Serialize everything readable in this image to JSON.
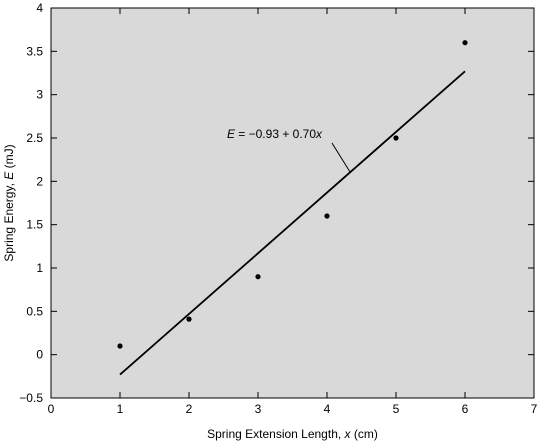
{
  "chart_data": {
    "type": "scatter",
    "xlabel": {
      "prefix": "Spring Extension Length, ",
      "var": "x",
      "suffix": " (cm)"
    },
    "ylabel": {
      "prefix": "Spring Energy, ",
      "var": "E",
      "suffix": " (mJ)"
    },
    "xlim": [
      0,
      7
    ],
    "ylim": [
      -0.5,
      4
    ],
    "x_ticks": [
      0,
      1,
      2,
      3,
      4,
      5,
      6,
      7
    ],
    "x_tick_labels": [
      "0",
      "1",
      "2",
      "3",
      "4",
      "5",
      "6",
      "7"
    ],
    "y_ticks": [
      -0.5,
      0,
      0.5,
      1,
      1.5,
      2,
      2.5,
      3,
      3.5,
      4
    ],
    "y_tick_labels": [
      "−0.5",
      "0",
      "0.5",
      "1",
      "1.5",
      "2",
      "2.5",
      "3",
      "3.5",
      "4"
    ],
    "grid": false,
    "background": "#d9d9d9",
    "points": {
      "x": [
        1,
        2,
        3,
        4,
        5,
        6
      ],
      "y": [
        0.1,
        0.41,
        0.9,
        1.6,
        2.5,
        3.6
      ]
    },
    "fit_line": {
      "intercept": -0.93,
      "slope": 0.7,
      "x_range": [
        1,
        6
      ]
    },
    "annotation": {
      "text_var": "E",
      "text_rest": " = −0.93 + 0.70",
      "text_var2": "x",
      "text_pos": {
        "x": 2.55,
        "y": 2.5
      },
      "arrow_to": {
        "x": 4.34,
        "y": 2.1
      }
    }
  }
}
